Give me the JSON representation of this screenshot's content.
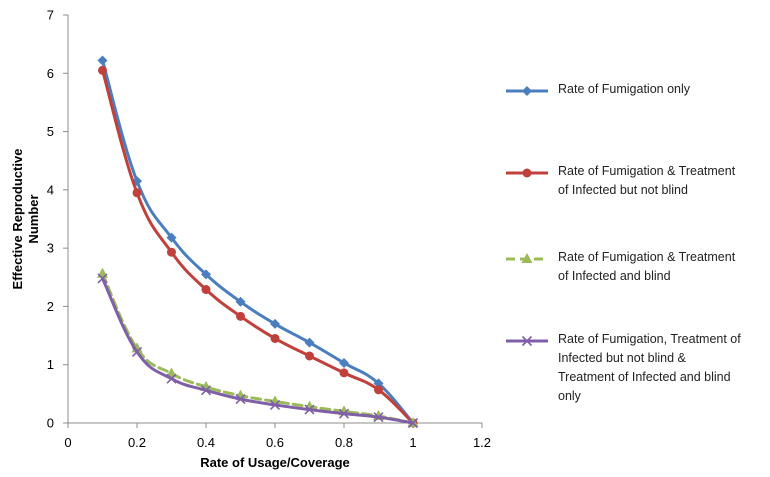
{
  "chart_data": {
    "type": "line",
    "title": "",
    "xlabel": "Rate of Usage/Coverage",
    "ylabel": "Effective Reproductive Number",
    "xlim": [
      0,
      1.2
    ],
    "ylim": [
      0,
      7
    ],
    "x_ticks": [
      0,
      0.2,
      0.4,
      0.6,
      0.8,
      1,
      1.2
    ],
    "y_ticks": [
      0,
      1,
      2,
      3,
      4,
      5,
      6,
      7
    ],
    "x_tick_labels": [
      "0",
      "0.2",
      "0.4",
      "0.6",
      "0.8",
      "1",
      "1.2"
    ],
    "y_tick_labels": [
      "0",
      "1",
      "2",
      "3",
      "4",
      "5",
      "6",
      "7"
    ],
    "grid": false,
    "legend_position": "right",
    "series": [
      {
        "name": "Rate of Fumigation only",
        "color": "#4a7ebf",
        "marker": "diamond",
        "dashed": false,
        "x": [
          0.1,
          0.2,
          0.3,
          0.4,
          0.5,
          0.6,
          0.7,
          0.8,
          0.9,
          1.0
        ],
        "y": [
          6.22,
          4.15,
          3.18,
          2.55,
          2.08,
          1.7,
          1.38,
          1.03,
          0.68,
          0.0
        ]
      },
      {
        "name": "Rate of Fumigation & Treatment of Infected but not blind",
        "color": "#c0413b",
        "marker": "circle",
        "dashed": false,
        "x": [
          0.1,
          0.2,
          0.3,
          0.4,
          0.5,
          0.6,
          0.7,
          0.8,
          0.9,
          1.0
        ],
        "y": [
          6.05,
          3.95,
          2.93,
          2.29,
          1.83,
          1.45,
          1.15,
          0.86,
          0.57,
          0.0
        ]
      },
      {
        "name": "Rate of Fumigation & Treatment of Infected and blind",
        "color": "#9bbb59",
        "marker": "triangle",
        "dashed": true,
        "x": [
          0.1,
          0.2,
          0.3,
          0.4,
          0.5,
          0.6,
          0.7,
          0.8,
          0.9,
          1.0
        ],
        "y": [
          2.56,
          1.28,
          0.85,
          0.62,
          0.47,
          0.37,
          0.28,
          0.2,
          0.12,
          0.0
        ]
      },
      {
        "name": "Rate of Fumigation, Treatment of Infected but not blind & Treatment of Infected and blind only",
        "color": "#7f5fa8",
        "marker": "x",
        "dashed": false,
        "x": [
          0.1,
          0.2,
          0.3,
          0.4,
          0.5,
          0.6,
          0.7,
          0.8,
          0.9,
          1.0
        ],
        "y": [
          2.48,
          1.22,
          0.76,
          0.56,
          0.41,
          0.31,
          0.23,
          0.16,
          0.1,
          0.0
        ]
      }
    ],
    "legend_labels": [
      [
        "Rate of Fumigation only"
      ],
      [
        "Rate of Fumigation & Treatment",
        "of Infected but not blind"
      ],
      [
        "Rate of Fumigation & Treatment",
        "of Infected and blind"
      ],
      [
        "Rate of Fumigation, Treatment of",
        "Infected but not blind &",
        "Treatment of Infected and blind",
        "only"
      ]
    ]
  }
}
